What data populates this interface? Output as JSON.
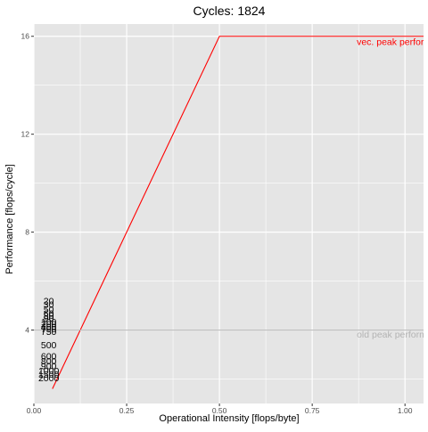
{
  "chart_data": {
    "type": "line",
    "title": "Cycles:  1824",
    "xlabel": "Operational Intensity [flops/byte]",
    "ylabel": "Performance [flops/cycle]",
    "xlim": [
      0,
      1.05
    ],
    "ylim": [
      1.0,
      16.5
    ],
    "x_ticks": [
      0.0,
      0.25,
      0.5,
      0.75,
      1.0
    ],
    "x_tick_labels": [
      "0.00",
      "0.25",
      "0.50",
      "0.75",
      "1.00"
    ],
    "y_ticks": [
      4,
      8,
      12,
      16
    ],
    "y_tick_labels": [
      "4",
      "8",
      "12",
      "16"
    ],
    "grid": true,
    "series": [
      {
        "color": "#ff0000",
        "x": [
          0.05,
          0.5,
          1.05
        ],
        "y": [
          1.6,
          16,
          16
        ]
      },
      {
        "color": "#bfbfbf",
        "x": [
          0,
          1.05
        ],
        "y": [
          4,
          4
        ]
      }
    ],
    "annotations": [
      {
        "text": "vec. peak performance",
        "x": 0.87,
        "y": 15.65,
        "color": "#ff0000"
      },
      {
        "text": "old peak performance",
        "x": 0.87,
        "y": 3.7,
        "color": "#b3b3b3"
      }
    ],
    "point_labels": [
      {
        "text": "20",
        "x": 0.04,
        "y": 5.2
      },
      {
        "text": "30",
        "x": 0.04,
        "y": 5.05
      },
      {
        "text": "50",
        "x": 0.04,
        "y": 4.85
      },
      {
        "text": "60",
        "x": 0.04,
        "y": 4.7
      },
      {
        "text": "80",
        "x": 0.04,
        "y": 4.6
      },
      {
        "text": "90",
        "x": 0.04,
        "y": 4.5
      },
      {
        "text": "100",
        "x": 0.04,
        "y": 4.35
      },
      {
        "text": "200",
        "x": 0.04,
        "y": 4.25
      },
      {
        "text": "400",
        "x": 0.04,
        "y": 4.15
      },
      {
        "text": "700",
        "x": 0.04,
        "y": 4.05
      },
      {
        "text": "750",
        "x": 0.04,
        "y": 3.95
      },
      {
        "text": "500",
        "x": 0.04,
        "y": 3.4
      },
      {
        "text": "600",
        "x": 0.04,
        "y": 2.95
      },
      {
        "text": "800",
        "x": 0.04,
        "y": 2.75
      },
      {
        "text": "900",
        "x": 0.04,
        "y": 2.55
      },
      {
        "text": "1000",
        "x": 0.04,
        "y": 2.35
      },
      {
        "text": "1500",
        "x": 0.04,
        "y": 2.2
      },
      {
        "text": "2000",
        "x": 0.04,
        "y": 2.05
      }
    ],
    "panel_color": "#e5e5e5",
    "grid_color": "#ffffff"
  }
}
